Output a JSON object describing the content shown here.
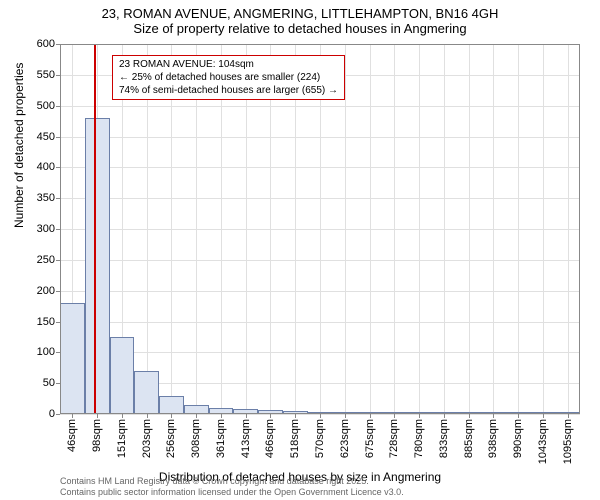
{
  "title": {
    "line1": "23, ROMAN AVENUE, ANGMERING, LITTLEHAMPTON, BN16 4GH",
    "line2": "Size of property relative to detached houses in Angmering"
  },
  "chart": {
    "type": "histogram",
    "ylabel": "Number of detached properties",
    "xlabel": "Distribution of detached houses by size in Angmering",
    "ylim": [
      0,
      600
    ],
    "ytick_step": 50,
    "yticks": [
      0,
      50,
      100,
      150,
      200,
      250,
      300,
      350,
      400,
      450,
      500,
      550,
      600
    ],
    "xticks": [
      "46sqm",
      "98sqm",
      "151sqm",
      "203sqm",
      "256sqm",
      "308sqm",
      "361sqm",
      "413sqm",
      "466sqm",
      "518sqm",
      "570sqm",
      "623sqm",
      "675sqm",
      "728sqm",
      "780sqm",
      "833sqm",
      "885sqm",
      "938sqm",
      "990sqm",
      "1043sqm",
      "1095sqm"
    ],
    "bars": [
      180,
      480,
      125,
      70,
      30,
      15,
      10,
      8,
      6,
      5,
      4,
      3,
      3,
      2,
      2,
      2,
      1,
      1,
      1,
      1,
      0
    ],
    "bar_fill": "#dce4f2",
    "bar_stroke": "#6b7fa8",
    "grid_color": "#e0e0e0",
    "border_color": "#888888",
    "background": "#ffffff",
    "marker_line_color": "#cc0000",
    "marker_position_pct": 6.5,
    "info_box": {
      "line1": "23 ROMAN AVENUE: 104sqm",
      "line2": "← 25% of detached houses are smaller (224)",
      "line3": "74% of semi-detached houses are larger (655) →",
      "left_pct": 10,
      "top_pct": 3
    }
  },
  "footer": {
    "line1": "Contains HM Land Registry data © Crown copyright and database right 2025.",
    "line2": "Contains public sector information licensed under the Open Government Licence v3.0."
  }
}
